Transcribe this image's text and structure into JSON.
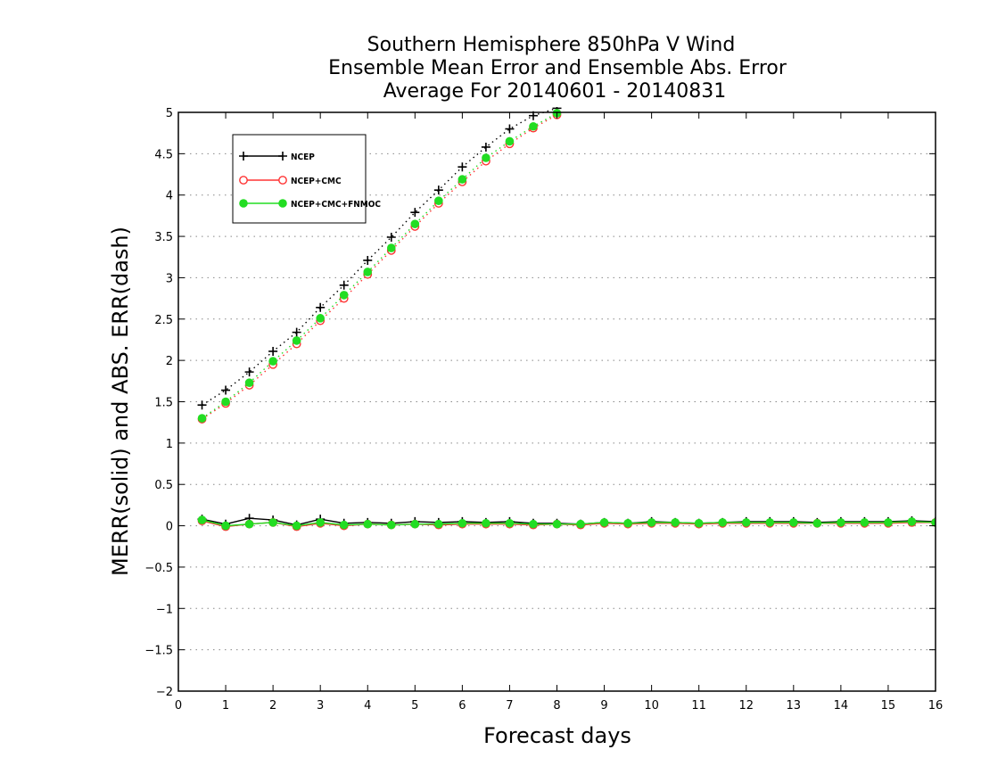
{
  "chart_data": {
    "type": "line",
    "title": [
      "Southern Hemisphere 850hPa V Wind",
      "Ensemble Mean Error and Ensemble Abs. Error",
      "Average For 20140601 - 20140831"
    ],
    "xlabel": "Forecast days",
    "ylabel": "MERR(solid) and ABS. ERR(dash)",
    "xlim": [
      0,
      16
    ],
    "ylim": [
      -2,
      5
    ],
    "xticks": [
      "0",
      "1",
      "2",
      "3",
      "4",
      "5",
      "6",
      "7",
      "8",
      "9",
      "10",
      "11",
      "12",
      "13",
      "14",
      "15",
      "16"
    ],
    "yticks": [
      "−2",
      "−1.5",
      "−1",
      "−0.5",
      "0",
      "0.5",
      "1",
      "1.5",
      "2",
      "2.5",
      "3",
      "3.5",
      "4",
      "4.5",
      "5"
    ],
    "grid": "horizontal dotted",
    "legend_position": "top-left",
    "x": [
      0.5,
      1,
      1.5,
      2,
      2.5,
      3,
      3.5,
      4,
      4.5,
      5,
      5.5,
      6,
      6.5,
      7,
      7.5,
      8,
      8.5,
      9,
      9.5,
      10,
      10.5,
      11,
      11.5,
      12,
      12.5,
      13,
      13.5,
      14,
      14.5,
      15,
      15.5,
      16
    ],
    "series": [
      {
        "name": "NCEP",
        "color": "#000000",
        "marker": "plus",
        "merr": [
          0.08,
          0.02,
          0.09,
          0.07,
          0.01,
          0.08,
          0.03,
          0.04,
          0.03,
          0.05,
          0.04,
          0.05,
          0.04,
          0.05,
          0.03,
          0.03,
          0.02,
          0.04,
          0.03,
          0.05,
          0.04,
          0.03,
          0.04,
          0.05,
          0.05,
          0.05,
          0.04,
          0.05,
          0.05,
          0.05,
          0.06,
          0.05
        ],
        "abs_err": [
          1.46,
          1.64,
          1.86,
          2.11,
          2.34,
          2.64,
          2.91,
          3.21,
          3.49,
          3.79,
          4.06,
          4.34,
          4.58,
          4.8,
          4.96,
          5.05,
          null,
          null,
          null,
          null,
          null,
          null,
          null,
          null,
          null,
          null,
          null,
          null,
          null,
          null,
          null,
          null
        ]
      },
      {
        "name": "NCEP+CMC",
        "color": "#ff3333",
        "marker": "open-circle",
        "merr": [
          0.06,
          -0.01,
          0.02,
          0.04,
          -0.01,
          0.03,
          0.0,
          0.02,
          0.01,
          0.02,
          0.01,
          0.02,
          0.02,
          0.02,
          0.01,
          0.02,
          0.01,
          0.03,
          0.02,
          0.03,
          0.03,
          0.02,
          0.03,
          0.03,
          0.03,
          0.03,
          0.03,
          0.03,
          0.03,
          0.03,
          0.04,
          0.04
        ],
        "abs_err": [
          1.29,
          1.48,
          1.7,
          1.95,
          2.2,
          2.48,
          2.75,
          3.04,
          3.33,
          3.62,
          3.9,
          4.16,
          4.41,
          4.62,
          4.81,
          4.97,
          null,
          null,
          null,
          null,
          null,
          null,
          null,
          null,
          null,
          null,
          null,
          null,
          null,
          null,
          null,
          null
        ]
      },
      {
        "name": "NCEP+CMC+FNMOC",
        "color": "#22dd22",
        "marker": "filled-circle",
        "merr": [
          0.07,
          0.0,
          0.02,
          0.04,
          0.0,
          0.04,
          0.01,
          0.02,
          0.01,
          0.02,
          0.02,
          0.03,
          0.03,
          0.03,
          0.02,
          0.02,
          0.02,
          0.04,
          0.03,
          0.04,
          0.04,
          0.03,
          0.04,
          0.04,
          0.04,
          0.04,
          0.03,
          0.04,
          0.04,
          0.04,
          0.05,
          0.04
        ],
        "abs_err": [
          1.3,
          1.5,
          1.73,
          1.99,
          2.24,
          2.51,
          2.79,
          3.07,
          3.36,
          3.65,
          3.93,
          4.19,
          4.45,
          4.65,
          4.83,
          4.99,
          null,
          null,
          null,
          null,
          null,
          null,
          null,
          null,
          null,
          null,
          null,
          null,
          null,
          null,
          null,
          null
        ]
      }
    ]
  }
}
